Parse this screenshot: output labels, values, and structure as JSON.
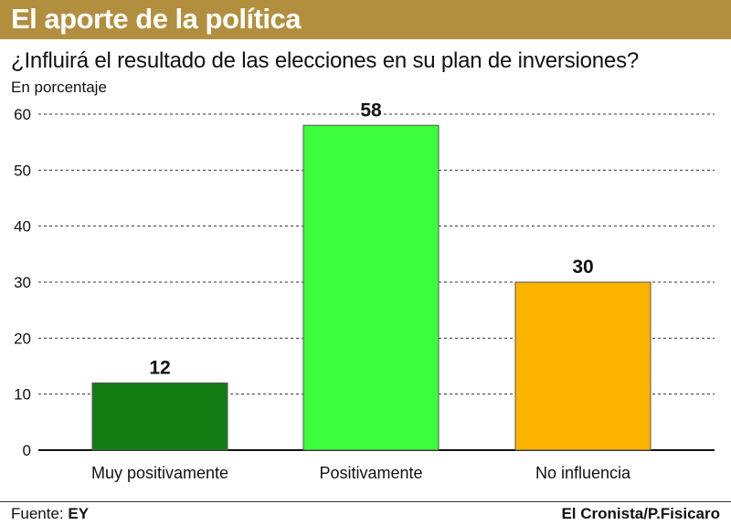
{
  "header": {
    "title": "El aporte de la política"
  },
  "chart_data": {
    "type": "bar",
    "title": "¿Influirá el resultado de las elecciones en su plan de inversiones?",
    "ylabel": "En porcentaje",
    "xlabel": "",
    "categories": [
      "Muy positivamente",
      "Positivamente",
      "No influencia"
    ],
    "values": [
      12,
      58,
      30
    ],
    "value_labels": [
      "12",
      "58",
      "30"
    ],
    "colors": [
      "#137d13",
      "#3cfe3c",
      "#fdb300"
    ],
    "ylim": [
      0,
      60
    ],
    "yticks": [
      0,
      10,
      20,
      30,
      40,
      50,
      60
    ],
    "ytick_labels": [
      "0",
      "10",
      "20",
      "30",
      "40",
      "50",
      "60"
    ],
    "grid": true,
    "legend": "none"
  },
  "footer": {
    "source_label": "Fuente:",
    "source_value": "EY",
    "credit": "El Cronista/P.Fisicaro"
  }
}
